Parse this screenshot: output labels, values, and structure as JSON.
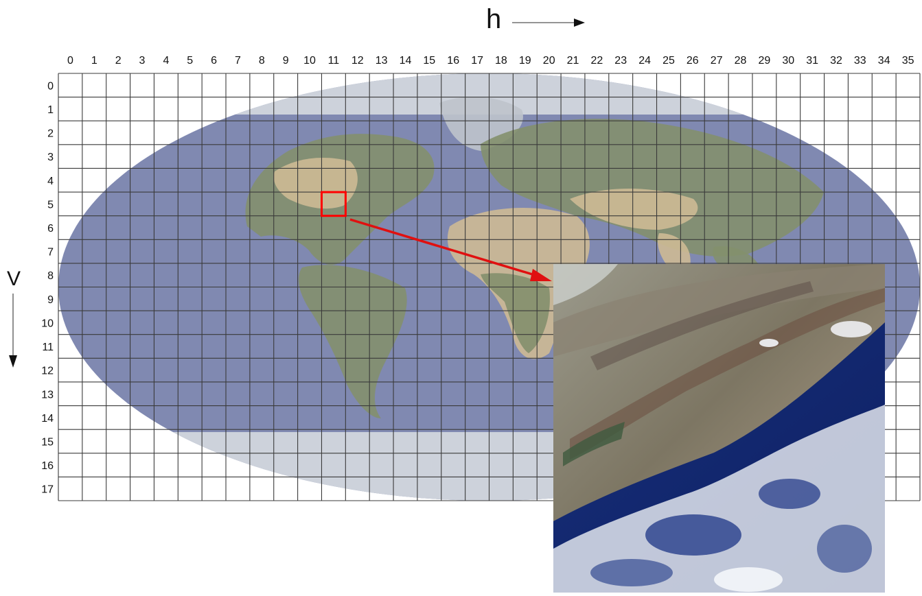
{
  "figure": {
    "h_axis_label": "h",
    "v_axis_label": "V",
    "h_ticks": [
      "0",
      "1",
      "2",
      "3",
      "4",
      "5",
      "6",
      "7",
      "8",
      "9",
      "10",
      "11",
      "12",
      "13",
      "14",
      "15",
      "16",
      "17",
      "18",
      "19",
      "20",
      "21",
      "22",
      "23",
      "24",
      "25",
      "26",
      "27",
      "28",
      "29",
      "30",
      "31",
      "32",
      "33",
      "34",
      "35"
    ],
    "v_ticks": [
      "0",
      "1",
      "2",
      "3",
      "4",
      "5",
      "6",
      "7",
      "8",
      "9",
      "10",
      "11",
      "12",
      "13",
      "14",
      "15",
      "16",
      "17"
    ],
    "highlighted_tile": {
      "h": 11,
      "v": 5
    },
    "colors": {
      "grid_line": "#3a3a3a",
      "ocean": "#7a84ad",
      "polar": "#d8dde0",
      "land_green": "#7e8d5a",
      "land_desert": "#d9c08a",
      "highlight": "#ff0000",
      "arrow": "#e01010"
    },
    "icons": {
      "h_arrow": "arrow-right-icon",
      "v_arrow": "arrow-down-icon",
      "callout_arrow": "callout-arrow-icon"
    }
  }
}
